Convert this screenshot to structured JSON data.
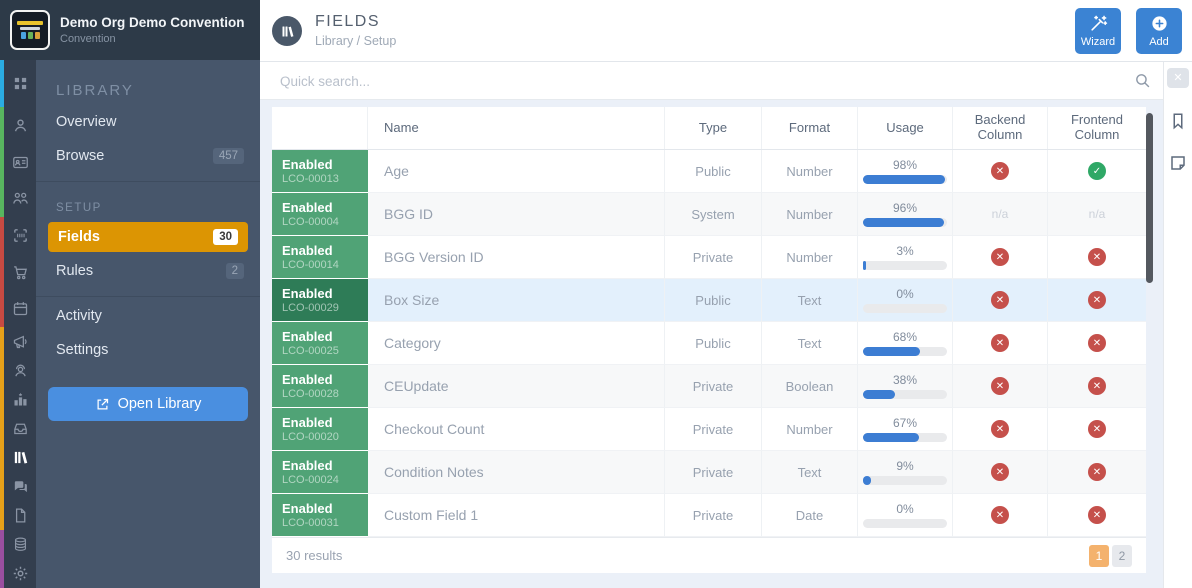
{
  "org": {
    "title": "Demo Org Demo Convention",
    "subtitle": "Convention"
  },
  "rail": {
    "active_icon": "library",
    "groups": [
      {
        "color": "#2bace2",
        "icons": [
          "dashboard-grid"
        ]
      },
      {
        "color": "#58b55f",
        "icons": [
          "person",
          "id-card",
          "people"
        ]
      },
      {
        "color": "#c74a42",
        "icons": [
          "scan",
          "cart",
          "calendar"
        ]
      },
      {
        "color": "#e6a019",
        "icons": [
          "megaphone",
          "support",
          "leaderboard",
          "tray",
          "library",
          "chat",
          "document"
        ]
      },
      {
        "color": "#9a4fa0",
        "icons": [
          "coins",
          "gear"
        ]
      }
    ]
  },
  "sidebar": {
    "section_library": "LIBRARY",
    "overview": {
      "label": "Overview"
    },
    "browse": {
      "label": "Browse",
      "badge": "457"
    },
    "section_setup": "SETUP",
    "fields": {
      "label": "Fields",
      "badge": "30"
    },
    "rules": {
      "label": "Rules",
      "badge": "2"
    },
    "activity": {
      "label": "Activity"
    },
    "settings": {
      "label": "Settings"
    },
    "open_library_label": "Open Library"
  },
  "header": {
    "title": "FIELDS",
    "breadcrumb": "Library / Setup",
    "wizard_label": "Wizard",
    "add_label": "Add"
  },
  "search": {
    "placeholder": "Quick search..."
  },
  "right_panel": {
    "icons": [
      "close-icon",
      "bookmark-icon",
      "note-icon"
    ]
  },
  "table": {
    "columns": [
      "",
      "Name",
      "Type",
      "Format",
      "Usage",
      "Backend Column",
      "Frontend Column"
    ],
    "rows": [
      {
        "status": "Enabled",
        "code": "LCO-00013",
        "name": "Age",
        "type": "Public",
        "format": "Number",
        "usage": 98,
        "backend": "no",
        "frontend": "yes",
        "highlighted": false
      },
      {
        "status": "Enabled",
        "code": "LCO-00004",
        "name": "BGG ID",
        "type": "System",
        "format": "Number",
        "usage": 96,
        "backend": "na",
        "frontend": "na",
        "highlighted": false
      },
      {
        "status": "Enabled",
        "code": "LCO-00014",
        "name": "BGG Version ID",
        "type": "Private",
        "format": "Number",
        "usage": 3,
        "backend": "no",
        "frontend": "no",
        "highlighted": false
      },
      {
        "status": "Enabled",
        "code": "LCO-00029",
        "name": "Box Size",
        "type": "Public",
        "format": "Text",
        "usage": 0,
        "backend": "no",
        "frontend": "no",
        "highlighted": true
      },
      {
        "status": "Enabled",
        "code": "LCO-00025",
        "name": "Category",
        "type": "Public",
        "format": "Text",
        "usage": 68,
        "backend": "no",
        "frontend": "no",
        "highlighted": false
      },
      {
        "status": "Enabled",
        "code": "LCO-00028",
        "name": "CEUpdate",
        "type": "Private",
        "format": "Boolean",
        "usage": 38,
        "backend": "no",
        "frontend": "no",
        "highlighted": false
      },
      {
        "status": "Enabled",
        "code": "LCO-00020",
        "name": "Checkout Count",
        "type": "Private",
        "format": "Number",
        "usage": 67,
        "backend": "no",
        "frontend": "no",
        "highlighted": false
      },
      {
        "status": "Enabled",
        "code": "LCO-00024",
        "name": "Condition Notes",
        "type": "Private",
        "format": "Text",
        "usage": 9,
        "backend": "no",
        "frontend": "no",
        "highlighted": false
      },
      {
        "status": "Enabled",
        "code": "LCO-00031",
        "name": "Custom Field 1",
        "type": "Private",
        "format": "Date",
        "usage": 0,
        "backend": "no",
        "frontend": "no",
        "highlighted": false
      }
    ],
    "na_label": "n/a"
  },
  "footer": {
    "results": "30 results",
    "pages": [
      "1",
      "2"
    ],
    "active_page": "1"
  },
  "colors": {
    "accent_blue": "#3b83d3",
    "active_orange": "#dc9503",
    "enabled_green": "#50a376",
    "enabled_green_dark": "#2e7c57",
    "status_no_red": "#c5504b",
    "status_yes_green": "#2fa866",
    "progress_blue": "#3c7dd3",
    "pagination_orange": "#f4b26d",
    "sidebar_bg": "#47566b",
    "rail_bg": "#333e4e",
    "top_band_bg": "#2d3a48",
    "highlight_row": "#e3f0fc"
  }
}
